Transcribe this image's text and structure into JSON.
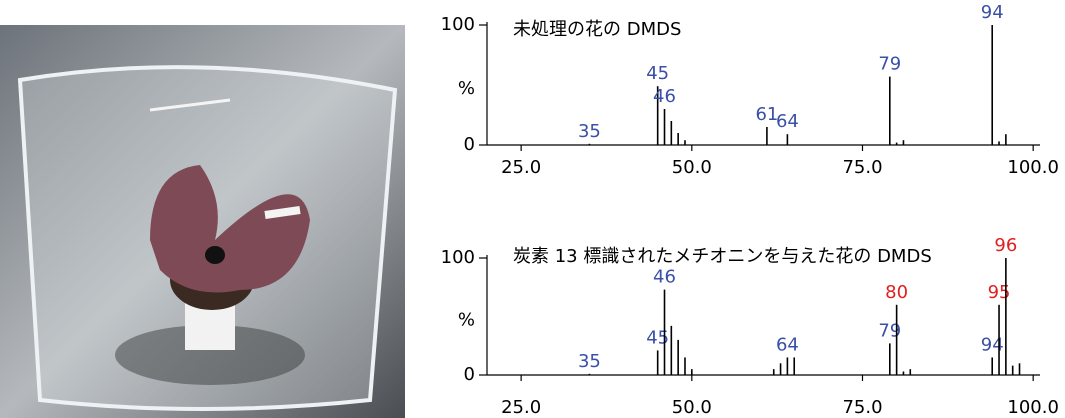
{
  "chart_data": [
    {
      "type": "bar",
      "title": "未処理の花の DMDS",
      "ylabel": "%",
      "color": "#000000",
      "x": [
        35,
        45,
        46,
        47,
        48,
        49,
        61,
        64,
        79,
        80,
        81,
        94,
        95,
        96
      ],
      "values": [
        1,
        49,
        30,
        20,
        10,
        4,
        15,
        9,
        57,
        2,
        4,
        100,
        3,
        9
      ],
      "label_colors": [
        "#3a4fa8",
        "#3a4fa8",
        "#3a4fa8",
        null,
        null,
        null,
        "#3a4fa8",
        "#3a4fa8",
        "#3a4fa8",
        null,
        null,
        "#3a4fa8",
        null,
        null
      ],
      "xlim": [
        20,
        101
      ],
      "ylim": [
        0,
        100
      ],
      "xticks": [
        {
          "value": 25,
          "label": "25.0"
        },
        {
          "value": 50,
          "label": "50.0"
        },
        {
          "value": 75,
          "label": "75.0"
        },
        {
          "value": 100,
          "label": "100.0"
        }
      ],
      "yticks": [
        0,
        100
      ]
    },
    {
      "type": "bar",
      "title": "炭素 13 標識されたメチオニンを与えた花の DMDS",
      "ylabel": "%",
      "color": "#000000",
      "x": [
        35,
        45,
        46,
        47,
        48,
        49,
        50,
        62,
        63,
        64,
        65,
        79,
        80,
        81,
        82,
        94,
        95,
        96,
        97,
        98
      ],
      "values": [
        1,
        21,
        73,
        42,
        30,
        15,
        5,
        5,
        10,
        15,
        15,
        27,
        60,
        3,
        5,
        15,
        60,
        100,
        8,
        10
      ],
      "label_colors": [
        "#3a4fa8",
        "#3a4fa8",
        "#3a4fa8",
        null,
        null,
        null,
        null,
        null,
        null,
        "#3a4fa8",
        null,
        "#3a4fa8",
        "#e02020",
        null,
        null,
        "#3a4fa8",
        "#e02020",
        "#e02020",
        null,
        null
      ],
      "xlim": [
        20,
        101
      ],
      "ylim": [
        0,
        100
      ],
      "xticks": [
        {
          "value": 25,
          "label": "25.0"
        },
        {
          "value": 50,
          "label": "50.0"
        },
        {
          "value": 75,
          "label": "75.0"
        },
        {
          "value": 100,
          "label": "100.0"
        }
      ],
      "yticks": [
        0,
        100
      ]
    }
  ]
}
